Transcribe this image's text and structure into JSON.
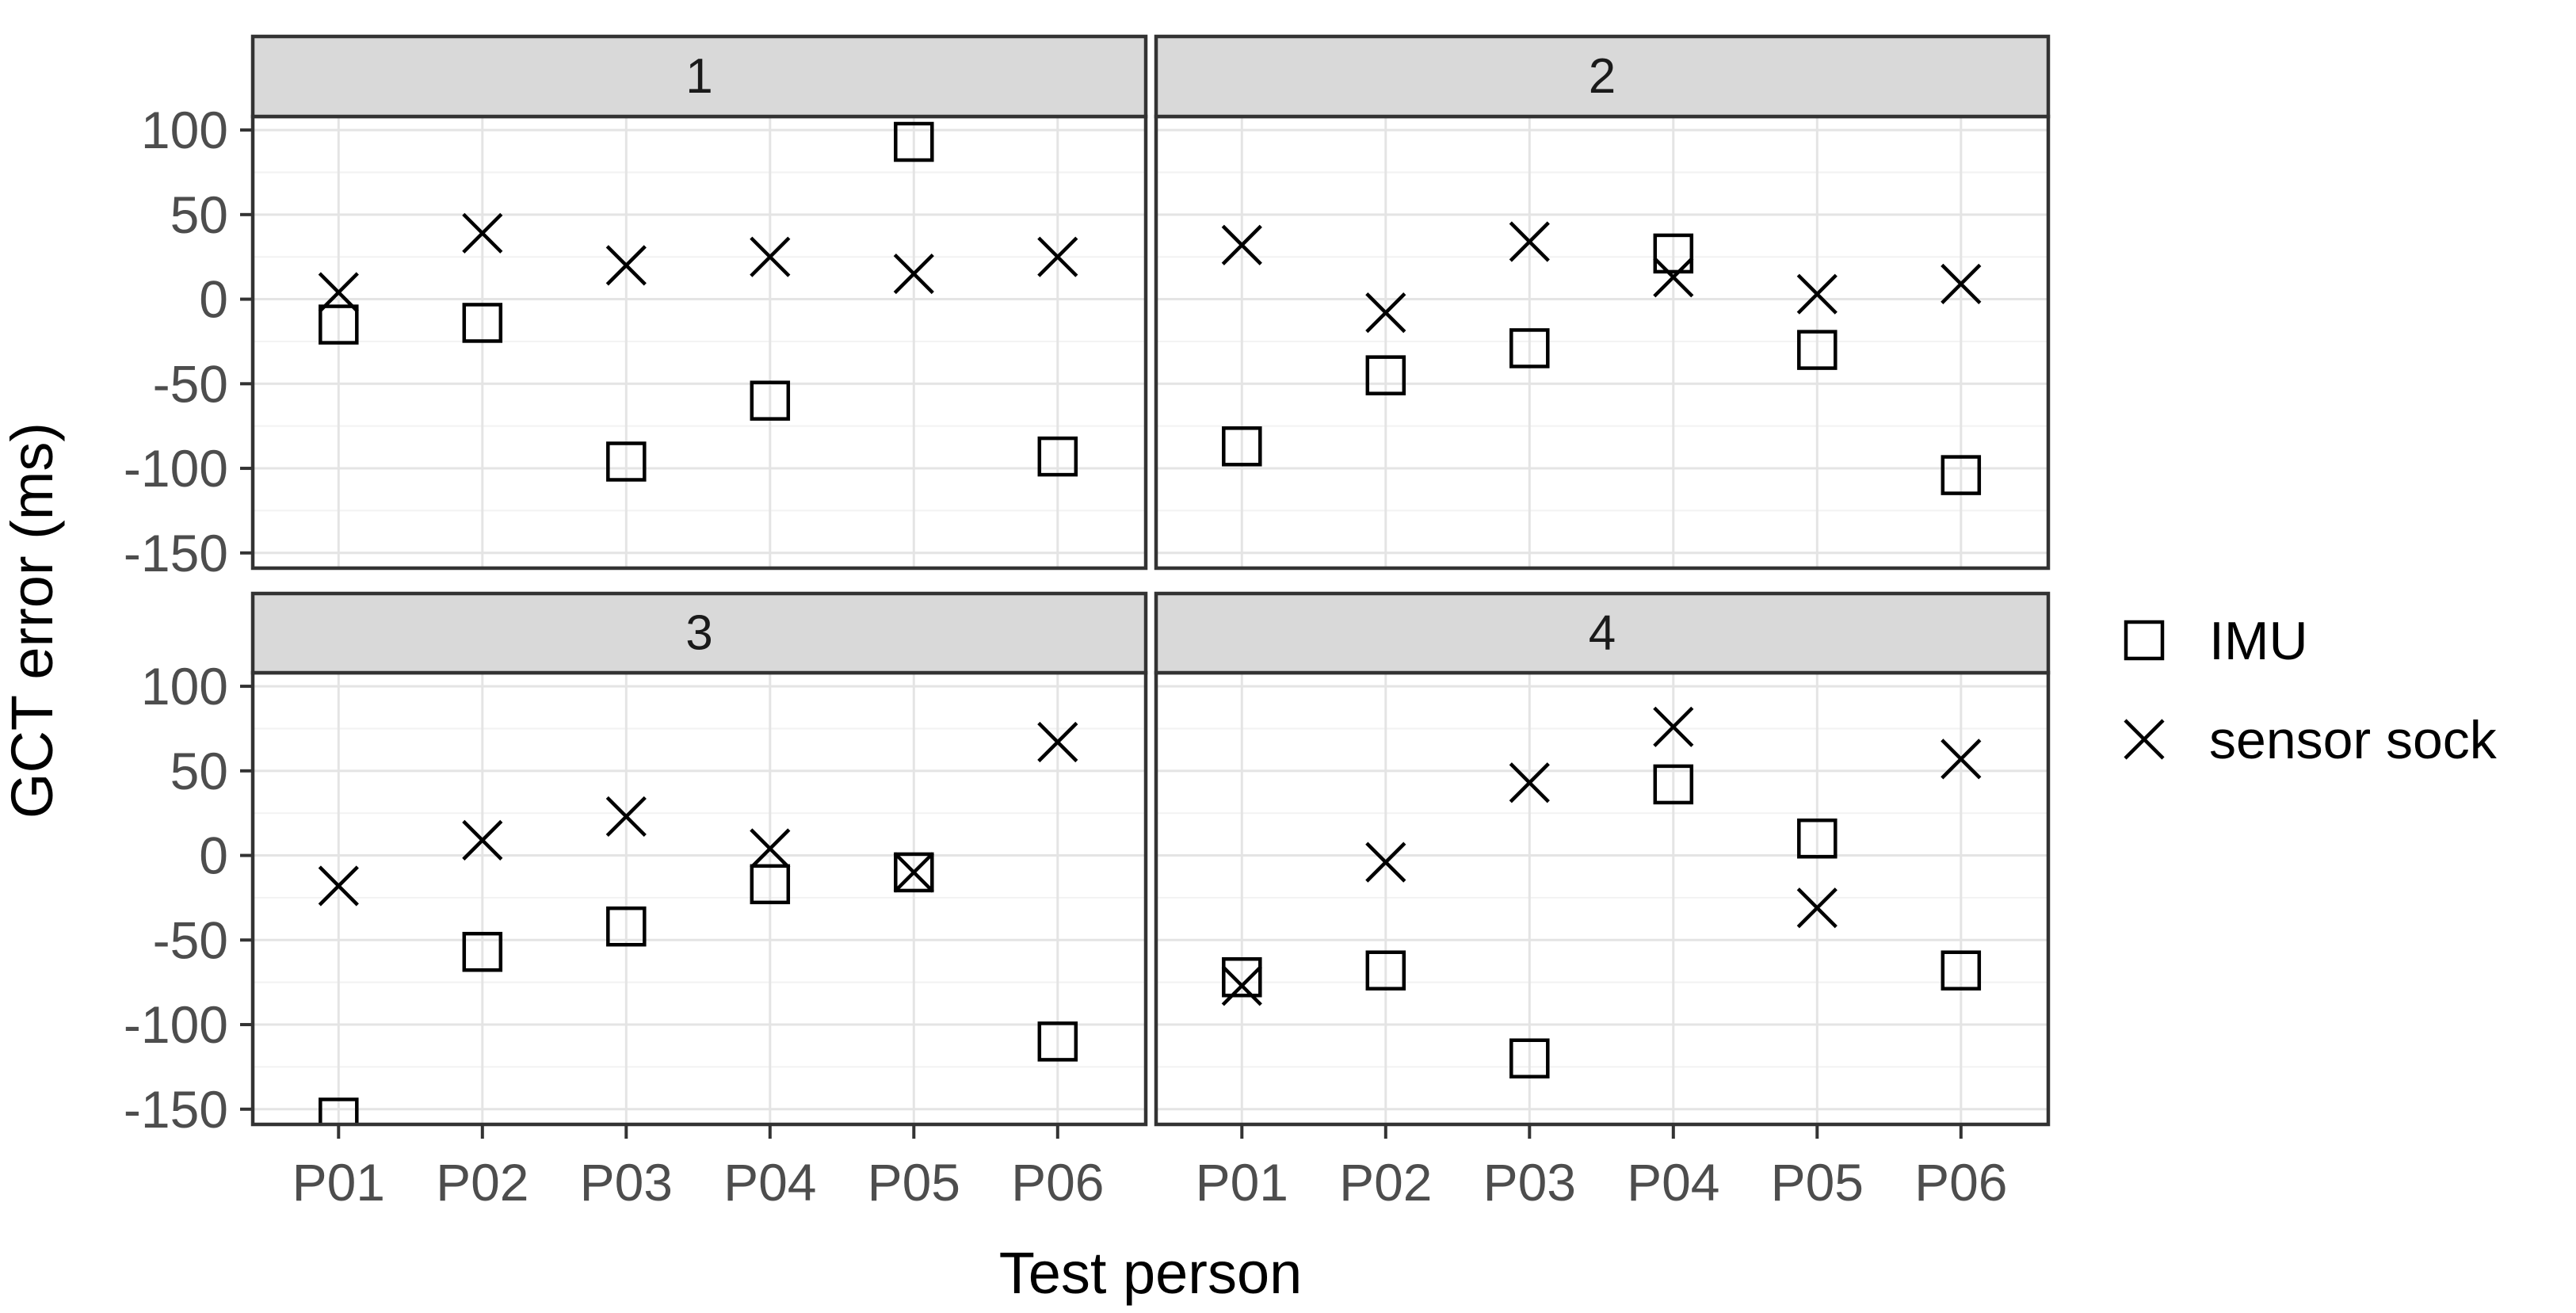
{
  "figure": {
    "y_axis_title": "GCT error (ms)",
    "x_axis_title": "Test person",
    "legend": {
      "items": [
        {
          "label": "IMU",
          "marker": "square-icon"
        },
        {
          "label": "sensor sock",
          "marker": "x-icon"
        }
      ]
    },
    "colors": {
      "background": "#ffffff",
      "panel_fill": "#ffffff",
      "strip_fill": "#d9d9d9",
      "panel_border": "#333333",
      "grid_major": "#e4e4e4",
      "grid_minor": "#f2f2f2",
      "tick_mark": "#333333",
      "tick_label": "#4d4d4d",
      "title_text": "#000000",
      "strip_text": "#1a1a1a",
      "marker_stroke": "#000000"
    }
  },
  "chart_data": {
    "type": "scatter",
    "title": "",
    "xlabel": "Test person",
    "ylabel": "GCT error (ms)",
    "categories": [
      "P01",
      "P02",
      "P03",
      "P04",
      "P05",
      "P06"
    ],
    "yticks": [
      100,
      50,
      0,
      -50,
      -100,
      -150
    ],
    "minor_yticks": [
      75,
      25,
      -25,
      -75,
      -125
    ],
    "ylim": [
      -159,
      108
    ],
    "grid": true,
    "legend_position": "right",
    "series_names": [
      "IMU",
      "sensor sock"
    ],
    "facets": [
      {
        "label": "1",
        "series": [
          {
            "name": "IMU",
            "marker": "square",
            "values": [
              -15,
              -14,
              -96,
              -60,
              93,
              -93
            ]
          },
          {
            "name": "sensor sock",
            "marker": "x",
            "values": [
              4,
              39,
              20,
              25,
              15,
              25
            ]
          }
        ]
      },
      {
        "label": "2",
        "series": [
          {
            "name": "IMU",
            "marker": "square",
            "values": [
              -87,
              -45,
              -29,
              27,
              -30,
              -104
            ]
          },
          {
            "name": "sensor sock",
            "marker": "x",
            "values": [
              32,
              -8,
              34,
              13,
              3,
              9
            ]
          }
        ]
      },
      {
        "label": "3",
        "series": [
          {
            "name": "IMU",
            "marker": "square",
            "values": [
              -155,
              -57,
              -42,
              -17,
              -10,
              -110
            ]
          },
          {
            "name": "sensor sock",
            "marker": "x",
            "values": [
              -18,
              9,
              23,
              4,
              -10,
              67
            ]
          }
        ]
      },
      {
        "label": "4",
        "series": [
          {
            "name": "IMU",
            "marker": "square",
            "values": [
              -72,
              -68,
              -120,
              42,
              10,
              -68
            ]
          },
          {
            "name": "sensor sock",
            "marker": "x",
            "values": [
              -77,
              -4,
              43,
              76,
              -31,
              57
            ]
          }
        ]
      }
    ]
  }
}
